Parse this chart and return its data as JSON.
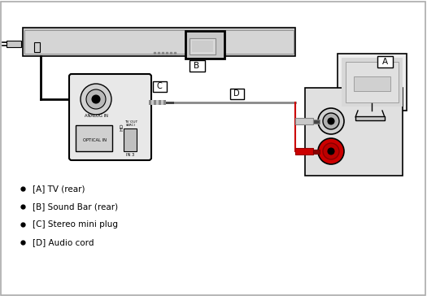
{
  "background_color": "#ffffff",
  "figure_size": [
    5.25,
    3.64
  ],
  "dpi": 100,
  "legend_items": [
    "[A] TV (rear)",
    "[B] Sound Bar (rear)",
    "[C] Stereo mini plug",
    "[D] Audio cord"
  ],
  "gray_light": "#c8c8c8",
  "gray_mid": "#888888",
  "gray_dark": "#444444",
  "red_color": "#cc0000",
  "black": "#000000",
  "white": "#ffffff",
  "panel_bg": "#e8e8e8",
  "tv_panel_bg": "#e0e0e0"
}
